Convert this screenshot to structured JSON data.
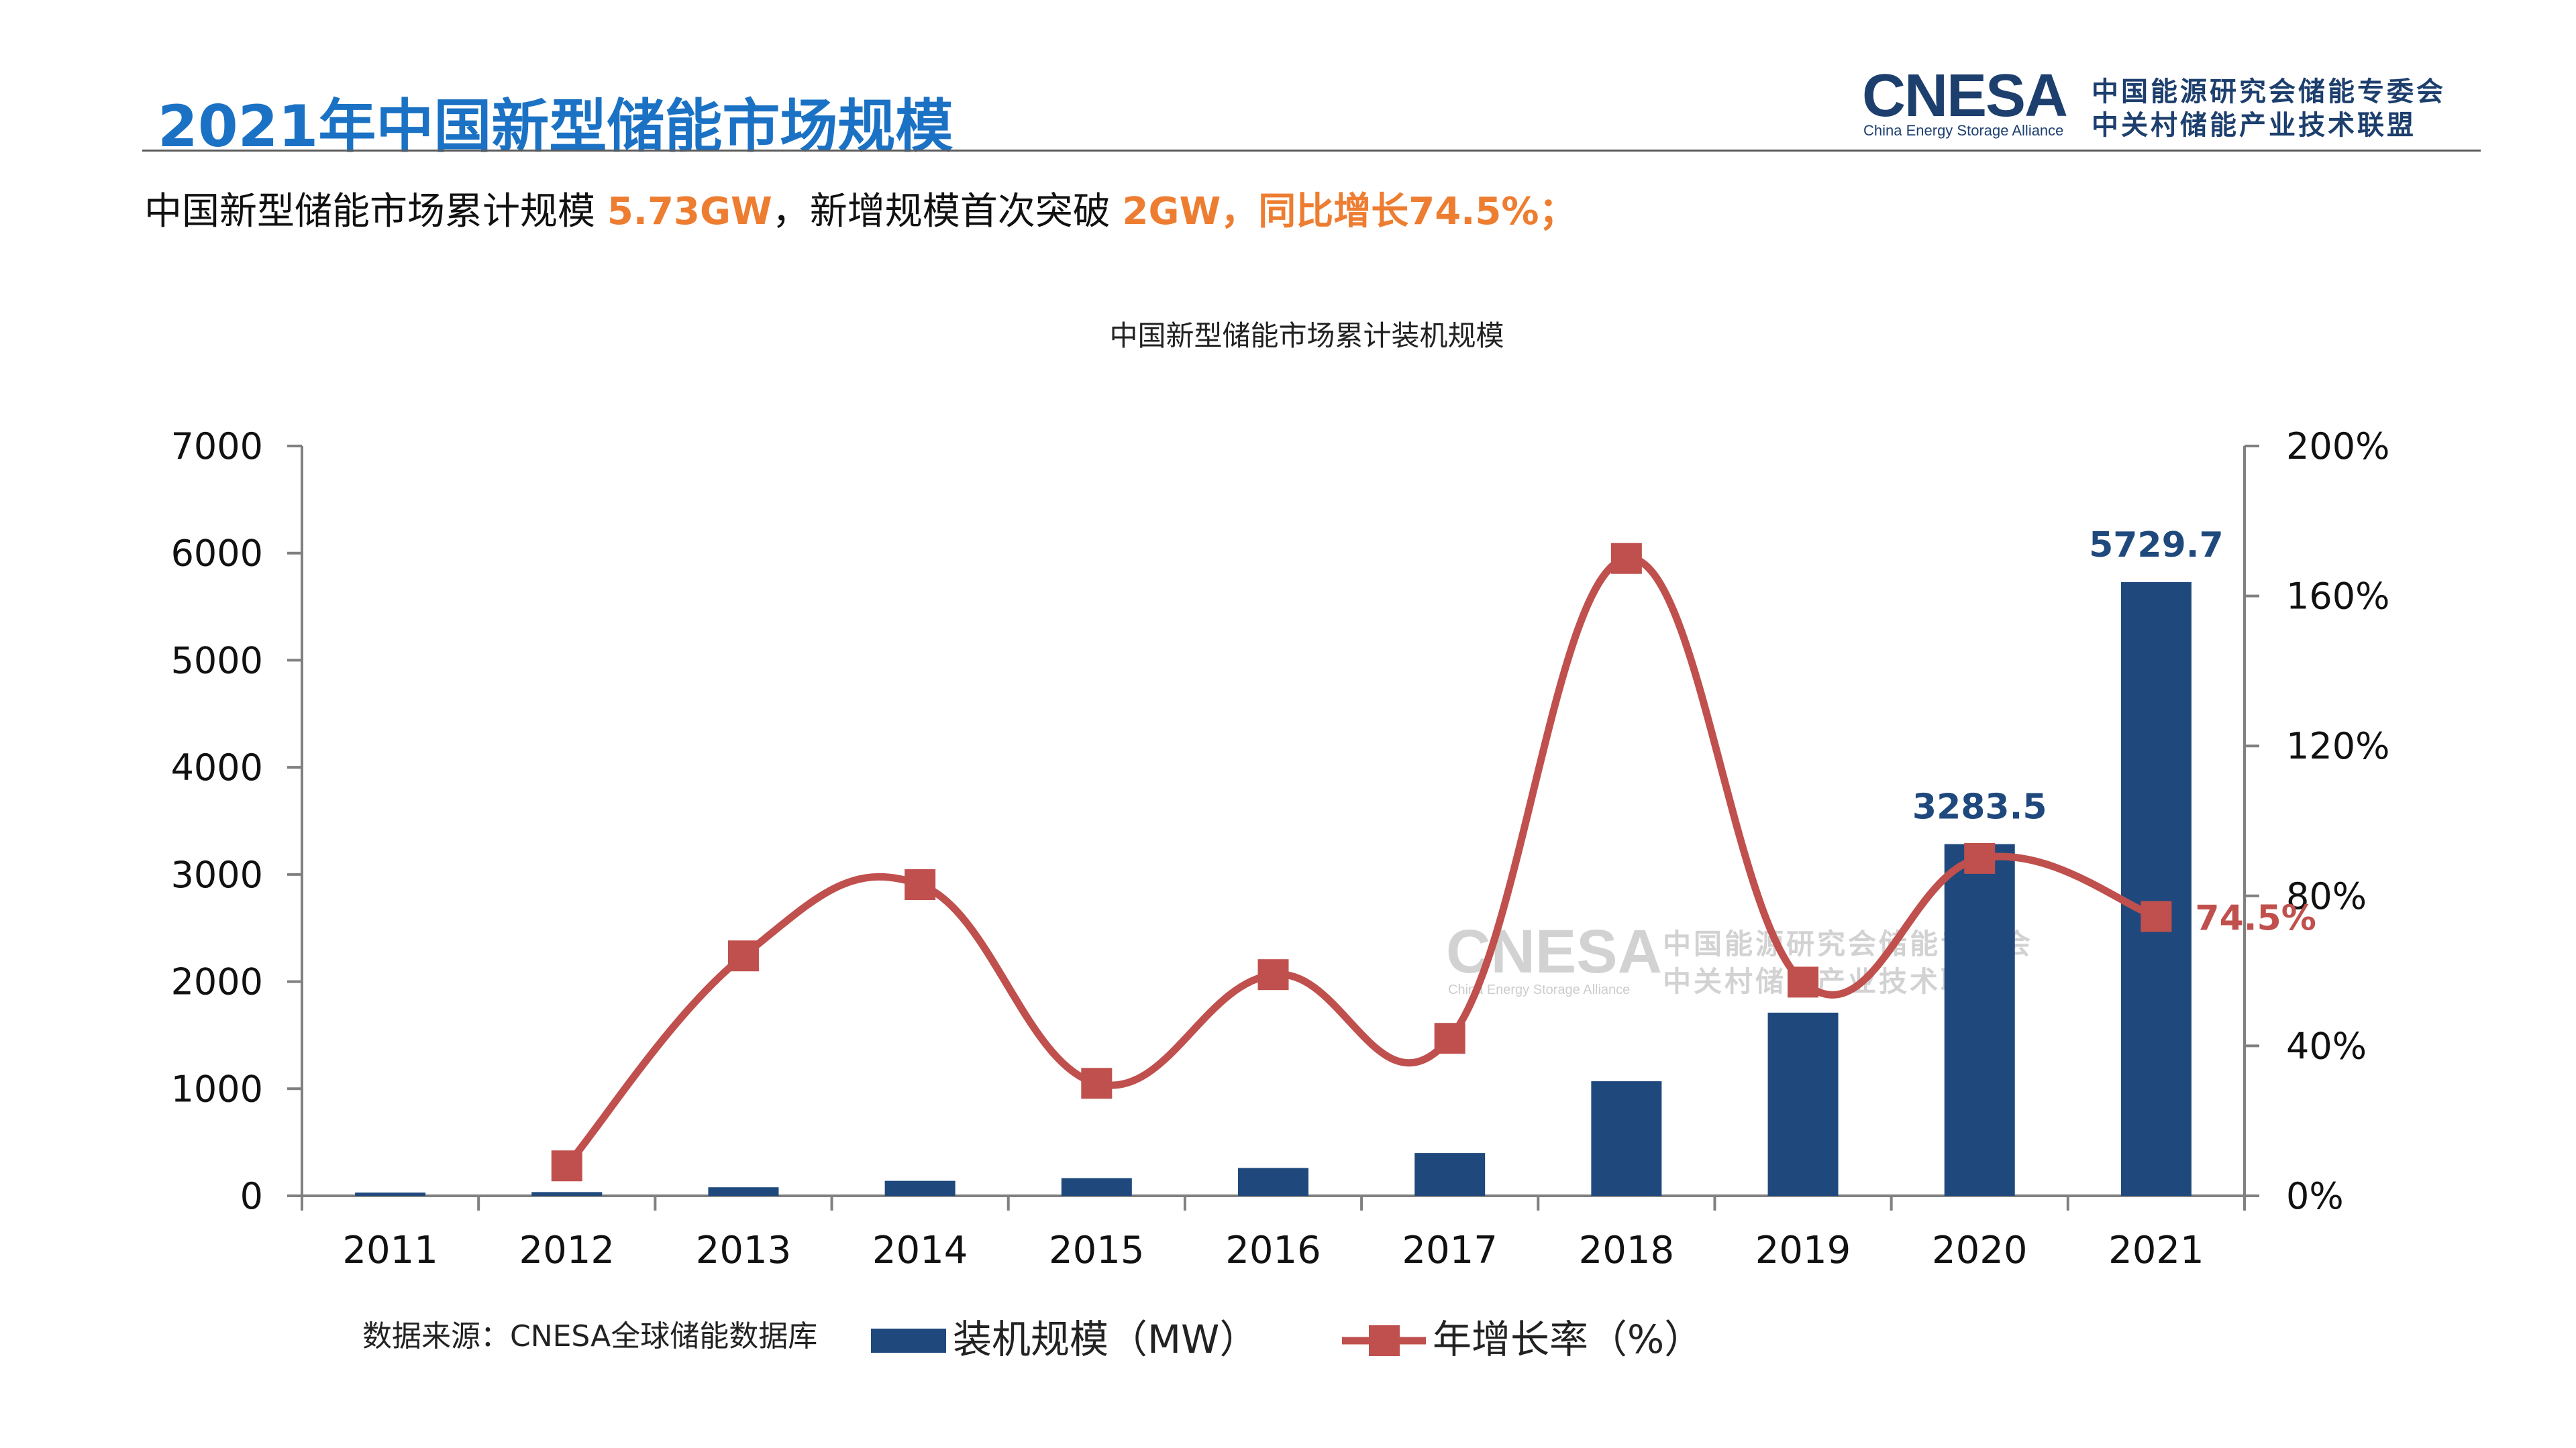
{
  "header": {
    "title": "2021年中国新型储能市场规模",
    "logo": {
      "mark_text": "CNESA",
      "english_name": "China Energy Storage Alliance",
      "cn_line1": "中国能源研究会储能专委会",
      "cn_line2": "中关村储能产业技术联盟"
    }
  },
  "summary": {
    "part1": "中国新型储能市场累计规模 ",
    "value1": "5.73GW",
    "part2": "，新增规模首次突破 ",
    "value2": "2GW，同比增长74.5%；"
  },
  "source_note": "数据来源：CNESA全球储能数据库",
  "watermark": {
    "mark_text": "CNESA",
    "english_name": "China Energy Storage Alliance",
    "cn_line1": "中国能源研究会储能专委会",
    "cn_line2": "中关村储能产业技术联盟"
  },
  "colors": {
    "bar": "#1f497d",
    "line": "#c0504d",
    "title": "#1b72c4",
    "highlight": "#ed7d31"
  },
  "chart_data": {
    "type": "bar",
    "title": "中国新型储能市场累计装机规模",
    "categories": [
      "2011",
      "2012",
      "2013",
      "2014",
      "2015",
      "2016",
      "2017",
      "2018",
      "2019",
      "2020",
      "2021"
    ],
    "series": [
      {
        "name": "装机规模（MW）",
        "type": "bar",
        "axis": "left",
        "values": [
          30,
          35,
          80,
          140,
          165,
          260,
          400,
          1070,
          1710,
          3283.5,
          5729.7
        ]
      },
      {
        "name": "年增长率（%）",
        "type": "line",
        "axis": "right",
        "values": [
          null,
          8,
          64,
          83,
          30,
          59,
          42,
          170,
          57,
          90,
          74.5
        ]
      }
    ],
    "data_labels": [
      {
        "category": "2020",
        "series": "装机规模（MW）",
        "text": "3283.5"
      },
      {
        "category": "2021",
        "series": "装机规模（MW）",
        "text": "5729.7"
      },
      {
        "category": "2021",
        "series": "年增长率（%）",
        "text": "74.5%"
      }
    ],
    "y_left": {
      "min": 0,
      "max": 7000,
      "ticks": [
        0,
        1000,
        2000,
        3000,
        4000,
        5000,
        6000,
        7000
      ]
    },
    "y_right": {
      "min": 0,
      "max": 200,
      "ticks": [
        "0%",
        "40%",
        "80%",
        "120%",
        "160%",
        "200%"
      ],
      "tick_values": [
        0,
        40,
        80,
        120,
        160,
        200
      ]
    },
    "legend_position": "bottom",
    "grid": false
  }
}
